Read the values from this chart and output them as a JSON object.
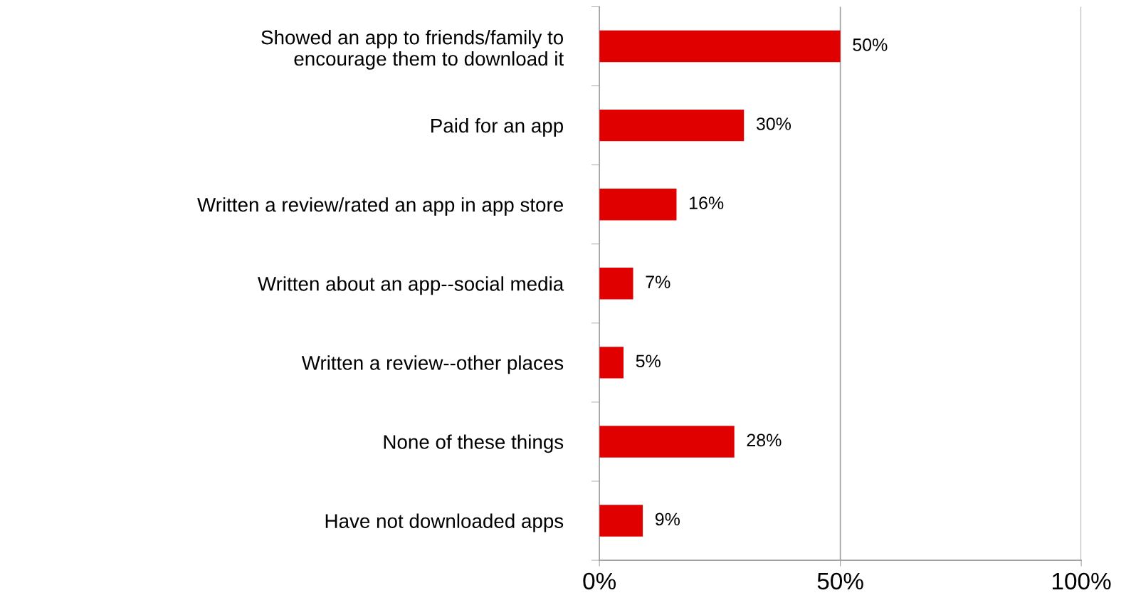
{
  "chart_data": {
    "type": "bar",
    "orientation": "horizontal",
    "categories": [
      "Showed an app to friends/family to\nencourage them to download it",
      "Paid for an app",
      "Written a review/rated an app in app store",
      "Written about an app--social media",
      "Written a review--other places",
      "None of these things",
      "Have not downloaded apps"
    ],
    "values": [
      50,
      30,
      16,
      7,
      5,
      28,
      9
    ],
    "value_labels": [
      "50%",
      "30%",
      "16%",
      "7%",
      "5%",
      "28%",
      "9%"
    ],
    "color": "#e00000",
    "xlim": [
      0,
      100
    ],
    "xticks": [
      {
        "value": 0,
        "label": "0%"
      },
      {
        "value": 50,
        "label": "50%"
      },
      {
        "value": 100,
        "label": "100%"
      }
    ],
    "grid": "x"
  }
}
